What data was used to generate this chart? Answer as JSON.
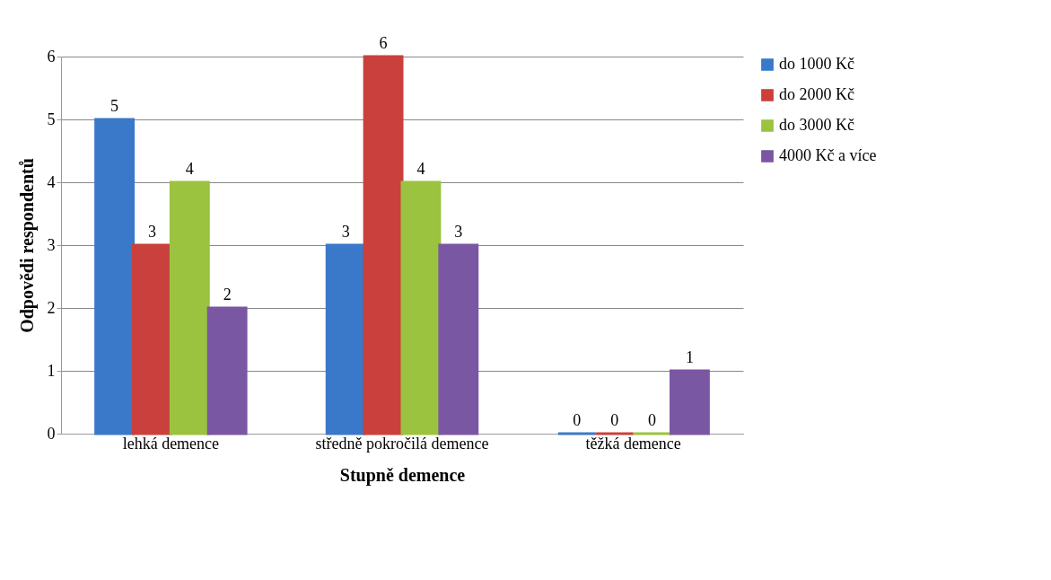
{
  "chart_data": {
    "type": "bar",
    "xlabel": "Stupně demence",
    "ylabel": "Odpovědi respondentů",
    "categories": [
      "lehká demence",
      "středně pokročilá demence",
      "těžká demence"
    ],
    "series": [
      {
        "name": "do 1000 Kč",
        "color": "#3a78c9",
        "values": [
          5,
          3,
          0
        ]
      },
      {
        "name": "do 2000 Kč",
        "color": "#c9403c",
        "values": [
          3,
          6,
          0
        ]
      },
      {
        "name": "do 3000 Kč",
        "color": "#9bc33f",
        "values": [
          4,
          4,
          0
        ]
      },
      {
        "name": "4000 Kč a více",
        "color": "#7a57a3",
        "values": [
          2,
          3,
          1
        ]
      }
    ],
    "ylim": [
      0,
      6
    ],
    "yticks": [
      0,
      1,
      2,
      3,
      4,
      5,
      6
    ],
    "grid": "y",
    "legend": "right",
    "data_labels": true
  }
}
